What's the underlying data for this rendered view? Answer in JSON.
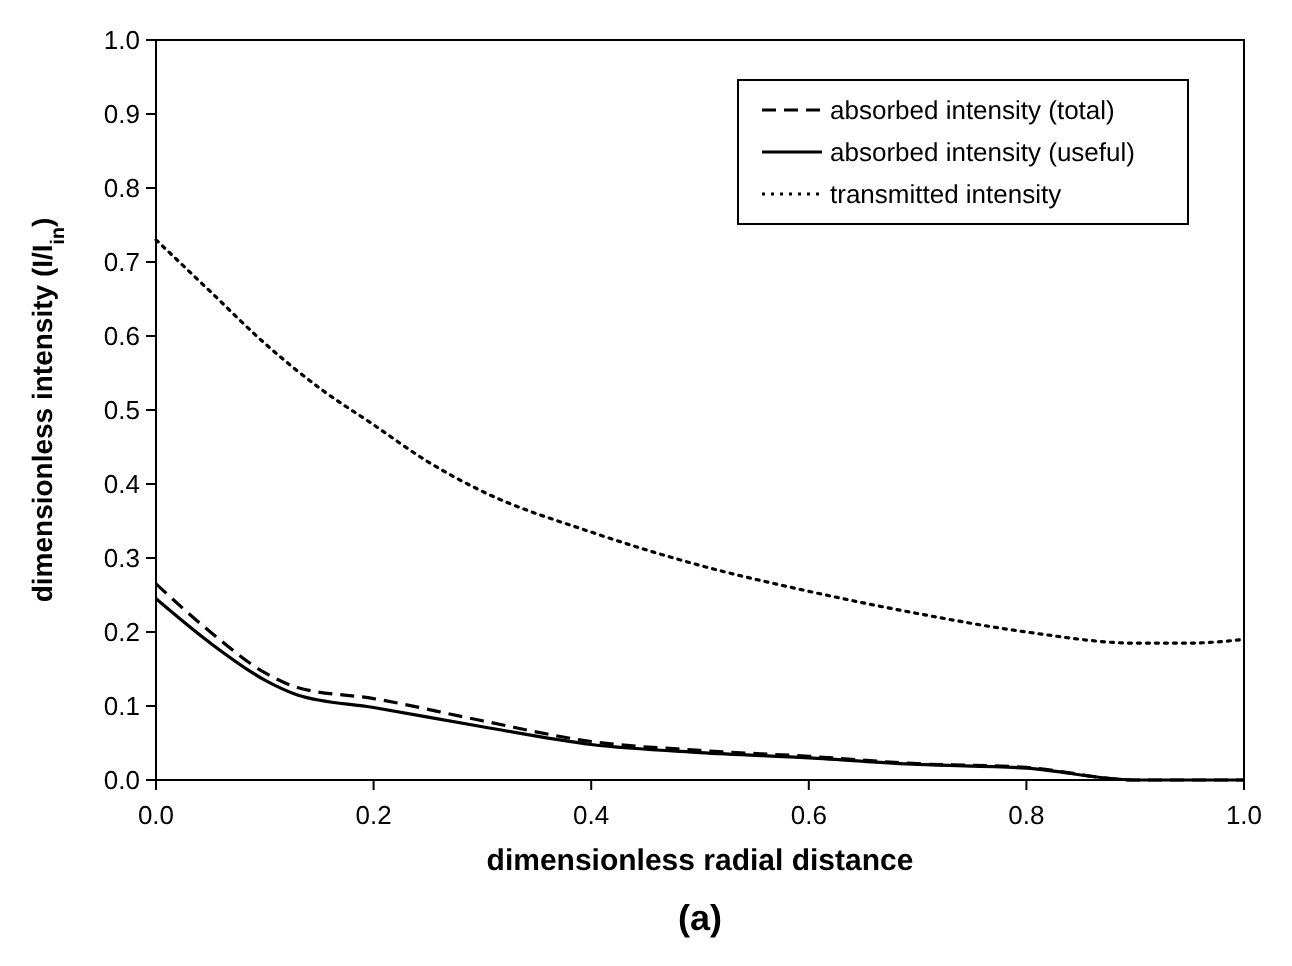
{
  "chart_data": {
    "type": "line",
    "xlabel": "dimensionless radial distance",
    "ylabel": "dimensionless intensity (I/I$_{in}$)",
    "annotations": [
      "(a)"
    ],
    "xlim": [
      0,
      1
    ],
    "ylim": [
      0,
      1
    ],
    "xticks": [
      {
        "value": 0,
        "label": "0.0"
      },
      0.2,
      0.4,
      0.6,
      0.8,
      {
        "value": 1,
        "label": "1.0"
      }
    ],
    "yticks": [
      {
        "value": 0,
        "label": "0.0"
      },
      0.1,
      0.2,
      0.3,
      0.4,
      0.5,
      0.6,
      0.7,
      0.8,
      0.9,
      {
        "value": 1,
        "label": "1.0"
      }
    ],
    "grid": false,
    "legend": "top right",
    "series": [
      {
        "name": "absorbed intensity (total)",
        "color": "#000000",
        "line_style": "dashed",
        "x": [
          0,
          0.05,
          0.1,
          0.13,
          0.2,
          0.3,
          0.4,
          0.5,
          0.6,
          0.7,
          0.8,
          0.9,
          1.0
        ],
        "values": [
          0.265,
          0.2,
          0.145,
          0.125,
          0.11,
          0.08,
          0.052,
          0.04,
          0.032,
          0.022,
          0.017,
          0.0,
          0.0
        ]
      },
      {
        "name": "absorbed intensity (useful)",
        "color": "#000000",
        "line_style": "solid",
        "x": [
          0,
          0.05,
          0.1,
          0.13,
          0.2,
          0.3,
          0.4,
          0.5,
          0.6,
          0.7,
          0.8,
          0.9,
          1.0
        ],
        "values": [
          0.245,
          0.185,
          0.135,
          0.115,
          0.098,
          0.072,
          0.048,
          0.037,
          0.03,
          0.021,
          0.016,
          0.0,
          0.0
        ]
      },
      {
        "name": "transmitted intensity",
        "color": "#000000",
        "line_style": "dotted",
        "x": [
          0,
          0.05,
          0.1,
          0.15,
          0.2,
          0.25,
          0.3,
          0.4,
          0.5,
          0.6,
          0.7,
          0.8,
          0.9,
          0.95,
          1.0
        ],
        "values": [
          0.73,
          0.66,
          0.59,
          0.53,
          0.48,
          0.43,
          0.39,
          0.335,
          0.29,
          0.255,
          0.225,
          0.2,
          0.185,
          0.185,
          0.19
        ]
      }
    ]
  }
}
